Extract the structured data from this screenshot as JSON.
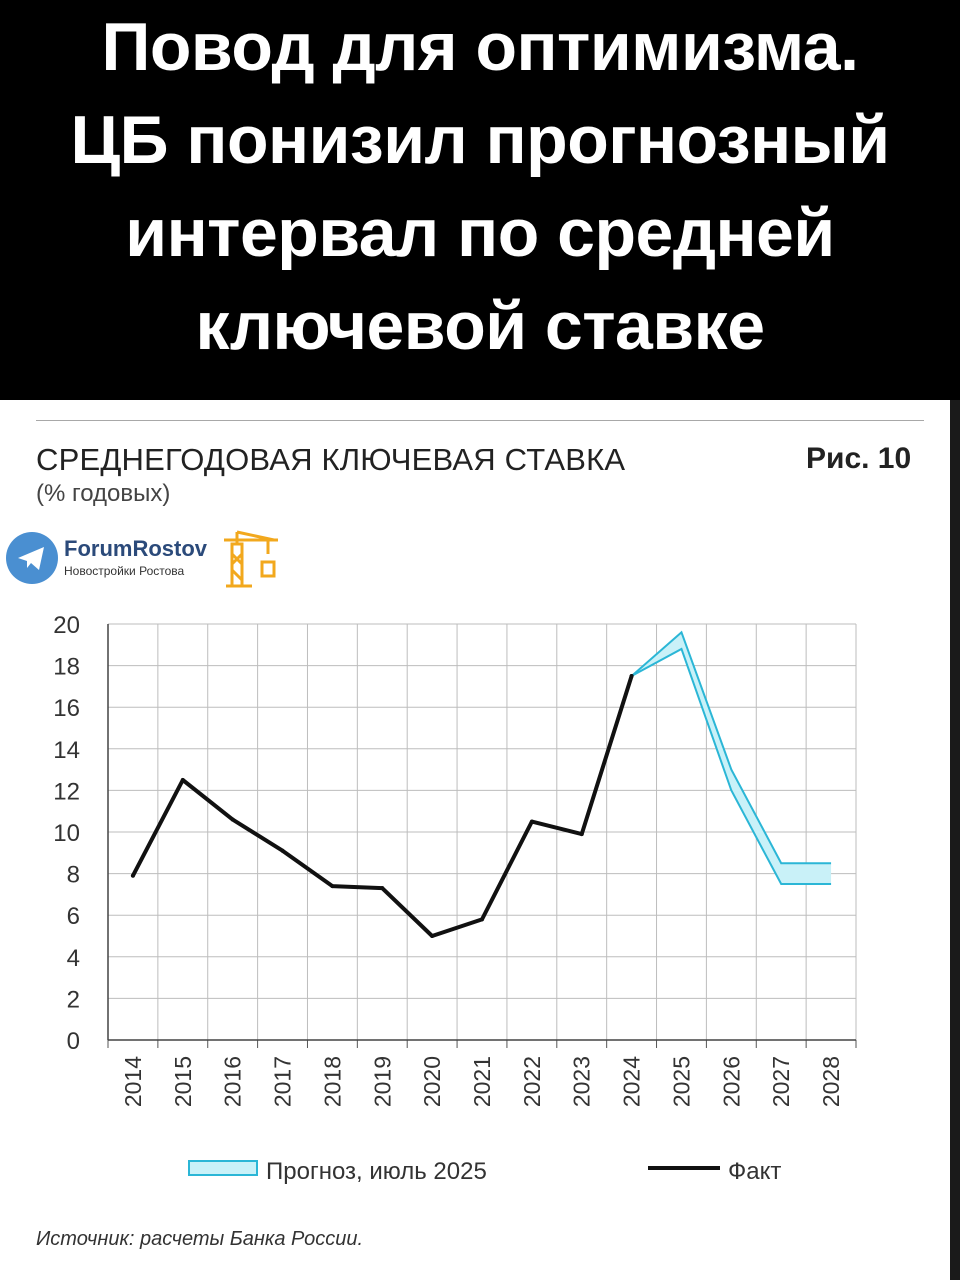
{
  "banner": {
    "lines": [
      "Повод для оптимизма.",
      "ЦБ понизил прогнозный",
      "интервал по средней",
      "ключевой ставке"
    ],
    "background": "#000000",
    "color": "#ffffff"
  },
  "logo": {
    "name": "ForumRostov",
    "tagline": "Новостройки Ростова",
    "icons": [
      "telegram-icon",
      "crane-icon"
    ],
    "circle_color": "#4a8fd1",
    "crane_color": "#f2a81d"
  },
  "figure_label": "Рис. 10",
  "legend": {
    "forecast_label": "Прогноз, июль 2025",
    "fact_label": "Факт"
  },
  "source": "Источник: расчеты Банка России.",
  "chart_data": {
    "type": "line",
    "title": "СРЕДНЕГОДОВАЯ КЛЮЧЕВАЯ СТАВКА",
    "subtitle": "(% годовых)",
    "categories": [
      "2014",
      "2015",
      "2016",
      "2017",
      "2018",
      "2019",
      "2020",
      "2021",
      "2022",
      "2023",
      "2024",
      "2025",
      "2026",
      "2027",
      "2028"
    ],
    "ylim": [
      0,
      20
    ],
    "yticks": [
      "0",
      "2",
      "4",
      "6",
      "8",
      "10",
      "12",
      "14",
      "16",
      "18",
      "20"
    ],
    "grid": true,
    "legend_position": "bottom",
    "series": [
      {
        "name": "Факт",
        "color": "#111111",
        "x": [
          "2014",
          "2015",
          "2016",
          "2017",
          "2018",
          "2019",
          "2020",
          "2021",
          "2022",
          "2023",
          "2024"
        ],
        "values": [
          7.9,
          12.5,
          10.6,
          9.1,
          7.4,
          7.3,
          5.0,
          5.8,
          10.5,
          9.9,
          17.5
        ]
      },
      {
        "name": "Прогноз, июль 2025",
        "color": "#2bb6d6",
        "fill": "#c9f1f8",
        "x": [
          "2024",
          "2025",
          "2026",
          "2027",
          "2028"
        ],
        "lower": [
          17.5,
          18.8,
          12.0,
          7.5,
          7.5
        ],
        "upper": [
          17.5,
          19.6,
          13.0,
          8.5,
          8.5
        ]
      }
    ]
  }
}
